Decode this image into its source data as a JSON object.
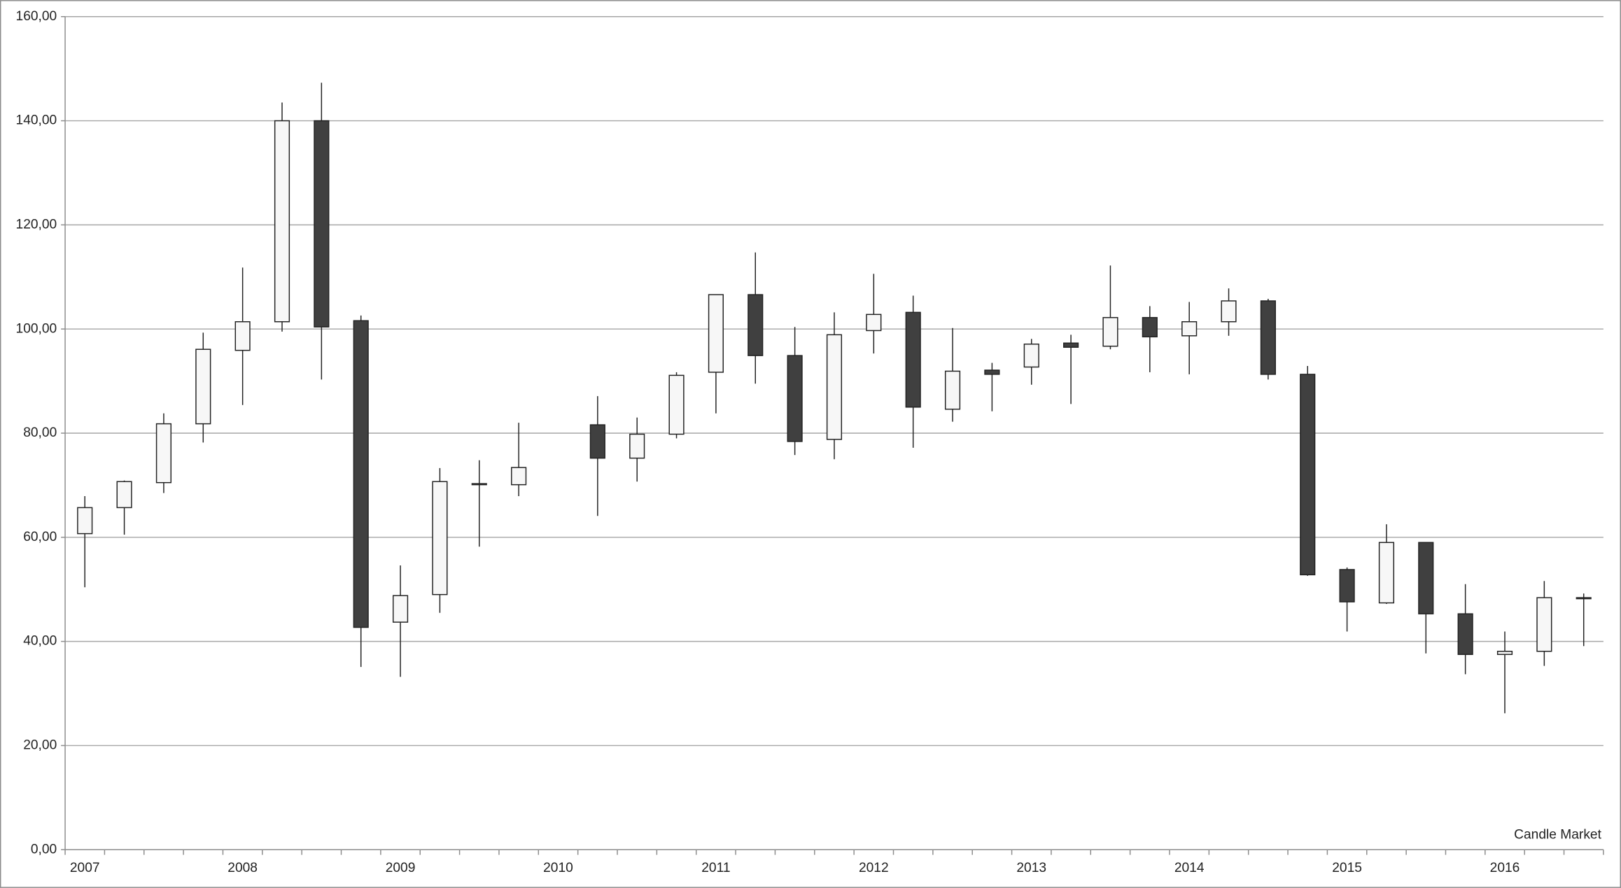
{
  "chart_data": {
    "type": "candlestick",
    "annotation": "Candle Market",
    "categories": [
      "2007",
      null,
      null,
      null,
      "2008",
      null,
      null,
      null,
      "2009",
      null,
      null,
      null,
      "2010",
      null,
      null,
      null,
      "2011",
      null,
      null,
      null,
      "2012",
      null,
      null,
      null,
      "2013",
      null,
      null,
      null,
      "2014",
      null,
      null,
      null,
      "2015",
      null,
      null,
      null,
      "2016",
      null,
      null
    ],
    "open": [
      60.7,
      65.7,
      70.5,
      81.8,
      95.9,
      101.4,
      140.0,
      101.6,
      43.7,
      49.0,
      70.3,
      70.1,
      null,
      81.6,
      75.2,
      79.8,
      91.7,
      106.6,
      94.9,
      78.8,
      99.7,
      103.2,
      84.6,
      92.1,
      92.7,
      97.3,
      96.7,
      102.2,
      98.7,
      101.4,
      105.4,
      91.3,
      53.8,
      47.4,
      59.0,
      45.3,
      37.5,
      38.1,
      48.4
    ],
    "high": [
      67.9,
      70.9,
      83.8,
      99.3,
      111.8,
      143.5,
      147.3,
      102.6,
      54.6,
      73.3,
      74.8,
      82.0,
      null,
      87.1,
      83.0,
      91.7,
      106.6,
      114.7,
      100.4,
      103.2,
      110.6,
      106.4,
      100.2,
      93.5,
      98.1,
      98.9,
      112.2,
      104.4,
      105.2,
      107.8,
      105.8,
      92.9,
      54.2,
      62.5,
      59.0,
      51.0,
      41.9,
      51.6,
      49.2
    ],
    "low": [
      50.4,
      60.5,
      68.5,
      78.2,
      85.4,
      99.5,
      90.3,
      35.1,
      33.2,
      45.5,
      58.2,
      67.9,
      null,
      64.1,
      70.7,
      79.0,
      83.8,
      89.5,
      75.8,
      75.0,
      95.3,
      77.2,
      82.2,
      84.2,
      89.3,
      85.6,
      96.1,
      91.7,
      91.3,
      98.7,
      90.3,
      52.6,
      41.9,
      47.2,
      37.7,
      33.7,
      26.2,
      35.3,
      39.1
    ],
    "close": [
      65.7,
      70.7,
      81.8,
      96.1,
      101.4,
      140.0,
      100.4,
      42.7,
      48.8,
      70.7,
      70.3,
      73.4,
      null,
      75.2,
      79.8,
      91.1,
      106.6,
      94.9,
      78.4,
      98.9,
      102.8,
      85.0,
      91.9,
      91.3,
      97.1,
      96.5,
      102.2,
      98.5,
      101.4,
      105.4,
      91.3,
      52.8,
      47.6,
      59.0,
      45.3,
      37.5,
      38.1,
      48.4,
      48.4
    ],
    "up_color": "#f7f7f7",
    "down_color": "#404040",
    "ylim": [
      0,
      160
    ],
    "yticks": [
      {
        "value": 0,
        "label": "0,00"
      },
      {
        "value": 20,
        "label": "20,00"
      },
      {
        "value": 40,
        "label": "40,00"
      },
      {
        "value": 60,
        "label": "60,00"
      },
      {
        "value": 80,
        "label": "80,00"
      },
      {
        "value": 100,
        "label": "100,00"
      },
      {
        "value": 120,
        "label": "120,00"
      },
      {
        "value": 140,
        "label": "140,00"
      },
      {
        "value": 160,
        "label": "160,00"
      }
    ],
    "grid": true
  }
}
